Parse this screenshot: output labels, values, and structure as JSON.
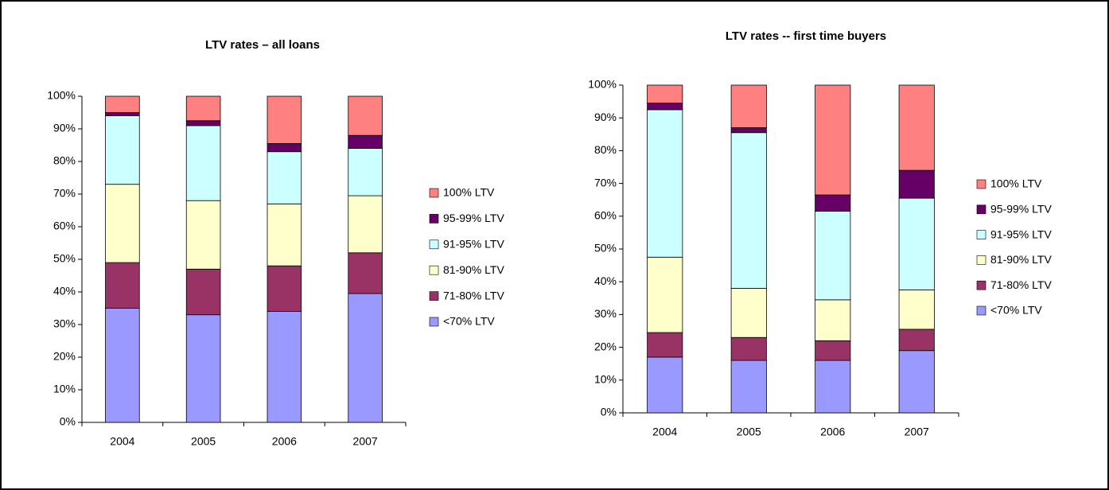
{
  "chart_data": [
    {
      "type": "bar",
      "stacked": true,
      "title": "LTV rates – all loans",
      "categories": [
        "2004",
        "2005",
        "2006",
        "2007"
      ],
      "series": [
        {
          "name": "<70% LTV",
          "color": "#9999ff",
          "values": [
            35,
            33,
            34,
            39.5
          ]
        },
        {
          "name": "71-80% LTV",
          "color": "#993366",
          "values": [
            14,
            14,
            14,
            12.5
          ]
        },
        {
          "name": "81-90% LTV",
          "color": "#ffffcc",
          "values": [
            24,
            21,
            19,
            17.5
          ]
        },
        {
          "name": "91-95% LTV",
          "color": "#ccffff",
          "values": [
            21,
            23,
            16,
            14.5
          ]
        },
        {
          "name": "95-99% LTV",
          "color": "#660066",
          "values": [
            1,
            1.5,
            2.5,
            4
          ]
        },
        {
          "name": "100% LTV",
          "color": "#ff8080",
          "values": [
            5,
            7.5,
            14.5,
            12
          ]
        }
      ],
      "ylim": [
        0,
        100
      ],
      "yticks": [
        {
          "value": 0,
          "label": "0%"
        },
        {
          "value": 10,
          "label": "10%"
        },
        {
          "value": 20,
          "label": "20%"
        },
        {
          "value": 30,
          "label": "30%"
        },
        {
          "value": 40,
          "label": "40%"
        },
        {
          "value": 50,
          "label": "50%"
        },
        {
          "value": 60,
          "label": "60%"
        },
        {
          "value": 70,
          "label": "70%"
        },
        {
          "value": 80,
          "label": "80%"
        },
        {
          "value": 90,
          "label": "90%"
        },
        {
          "value": 100,
          "label": "100%"
        }
      ],
      "grid": false,
      "legend": "right"
    },
    {
      "type": "bar",
      "stacked": true,
      "title": "LTV rates -- first time buyers",
      "categories": [
        "2004",
        "2005",
        "2006",
        "2007"
      ],
      "series": [
        {
          "name": "<70% LTV",
          "color": "#9999ff",
          "values": [
            17,
            16,
            16,
            19
          ]
        },
        {
          "name": "71-80% LTV",
          "color": "#993366",
          "values": [
            7.5,
            7,
            6,
            6.5
          ]
        },
        {
          "name": "81-90% LTV",
          "color": "#ffffcc",
          "values": [
            23,
            15,
            12.5,
            12
          ]
        },
        {
          "name": "91-95% LTV",
          "color": "#ccffff",
          "values": [
            45,
            47.5,
            27,
            28
          ]
        },
        {
          "name": "95-99% LTV",
          "color": "#660066",
          "values": [
            2,
            1.5,
            5,
            8.5
          ]
        },
        {
          "name": "100% LTV",
          "color": "#ff8080",
          "values": [
            5.5,
            13,
            33.5,
            26
          ]
        }
      ],
      "ylim": [
        0,
        100
      ],
      "yticks": [
        {
          "value": 0,
          "label": "0%"
        },
        {
          "value": 10,
          "label": "10%"
        },
        {
          "value": 20,
          "label": "20%"
        },
        {
          "value": 30,
          "label": "30%"
        },
        {
          "value": 40,
          "label": "40%"
        },
        {
          "value": 50,
          "label": "50%"
        },
        {
          "value": 60,
          "label": "60%"
        },
        {
          "value": 70,
          "label": "70%"
        },
        {
          "value": 80,
          "label": "80%"
        },
        {
          "value": 90,
          "label": "90%"
        },
        {
          "value": 100,
          "label": "100%"
        }
      ],
      "grid": false,
      "legend": "right"
    }
  ]
}
